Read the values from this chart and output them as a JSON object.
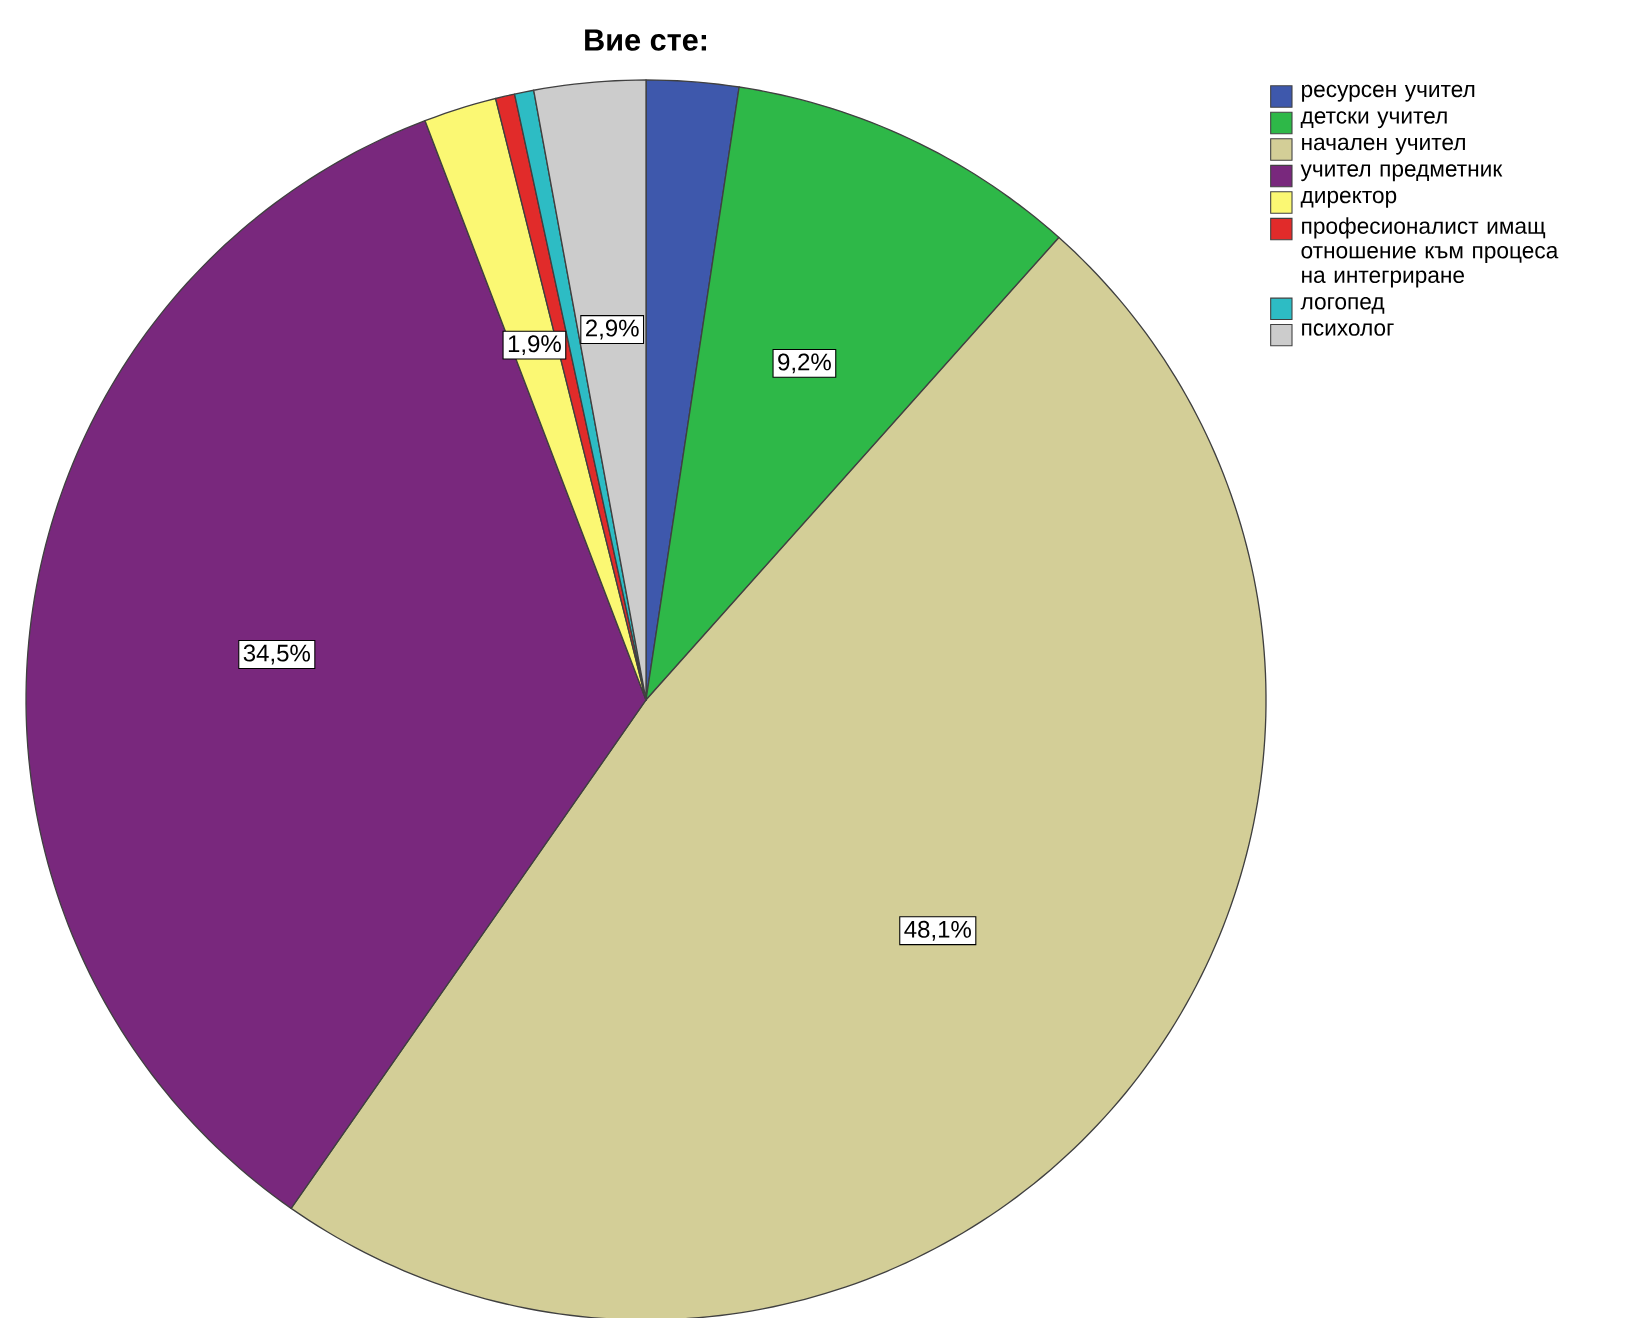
{
  "chart_data": {
    "type": "pie",
    "title": "Вие сте:",
    "categories": [
      "ресурсен учител",
      "детски учител",
      "начален учител",
      "учител предметник",
      "директор",
      "професионалист имащ отношение към процеса на интегриране",
      "логопед",
      "психолог"
    ],
    "values": [
      2.4,
      9.2,
      48.1,
      34.5,
      1.9,
      0.5,
      0.5,
      2.9
    ],
    "colors": [
      "#3e58ac",
      "#2eb848",
      "#d3ce97",
      "#79287d",
      "#fbf873",
      "#e12b2a",
      "#2dbcc4",
      "#cccccc"
    ],
    "value_labels": [
      null,
      "9,2%",
      "48,1%",
      "34,5%",
      "1,9%",
      null,
      null,
      "2,9%"
    ],
    "legend": "top right"
  }
}
